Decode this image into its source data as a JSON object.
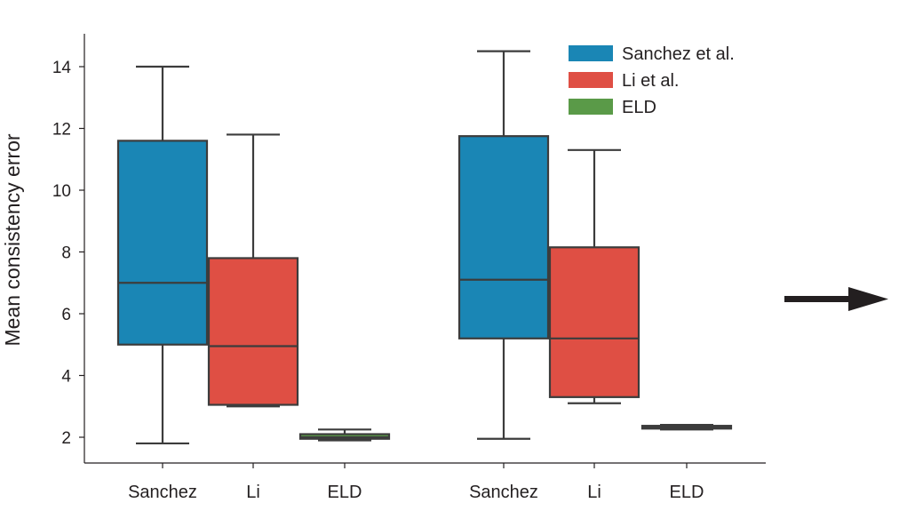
{
  "chart_data": {
    "type": "box",
    "title": "",
    "xlabel": "",
    "ylabel": "Mean consistency error",
    "ylim": [
      1.3,
      15
    ],
    "yticks": [
      2,
      4,
      6,
      8,
      10,
      12,
      14
    ],
    "grid": false,
    "legend_position": "top-right",
    "series": [
      {
        "name": "Sanchez et al.",
        "color": "#1a86b5"
      },
      {
        "name": "Li et al.",
        "color": "#df4f44"
      },
      {
        "name": "ELD",
        "color": "#5a9a48"
      }
    ],
    "groups": [
      {
        "boxes": [
          {
            "label": "Sanchez",
            "series": "Sanchez et al.",
            "min": 1.8,
            "q1": 5.0,
            "median": 7.0,
            "q3": 11.6,
            "max": 14.0
          },
          {
            "label": "Li",
            "series": "Li et al.",
            "min": 3.0,
            "q1": 3.05,
            "median": 4.95,
            "q3": 7.8,
            "max": 11.8
          },
          {
            "label": "ELD",
            "series": "ELD",
            "min": 1.9,
            "q1": 1.95,
            "median": 2.0,
            "q3": 2.1,
            "max": 2.25
          }
        ]
      },
      {
        "boxes": [
          {
            "label": "Sanchez",
            "series": "Sanchez et al.",
            "min": 1.95,
            "q1": 5.2,
            "median": 7.1,
            "q3": 11.75,
            "max": 14.5
          },
          {
            "label": "Li",
            "series": "Li et al.",
            "min": 3.1,
            "q1": 3.3,
            "median": 5.2,
            "q3": 8.15,
            "max": 11.3
          },
          {
            "label": "ELD",
            "series": "ELD",
            "min": 2.25,
            "q1": 2.28,
            "median": 2.32,
            "q3": 2.37,
            "max": 2.4
          }
        ]
      }
    ],
    "annotation": "right-arrow"
  }
}
